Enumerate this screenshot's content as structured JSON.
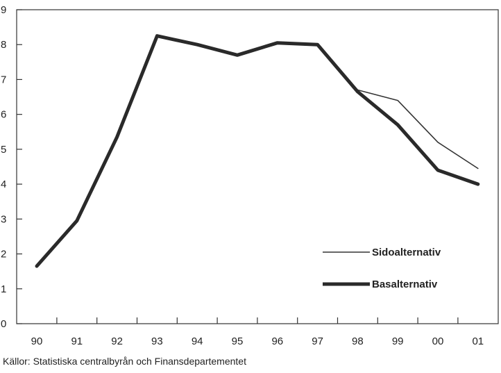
{
  "chart_data": {
    "type": "line",
    "categories": [
      "90",
      "91",
      "92",
      "93",
      "94",
      "95",
      "96",
      "97",
      "98",
      "99",
      "00",
      "01"
    ],
    "ylim": [
      0,
      9
    ],
    "yticks": [
      "0",
      "1",
      "2",
      "3",
      "4",
      "5",
      "6",
      "7",
      "8",
      "9"
    ],
    "grid": false,
    "legend_position": "bottom-right",
    "series": [
      {
        "name": "Sidoalternativ",
        "style": "thin",
        "color": "#333333",
        "values": [
          null,
          null,
          null,
          null,
          null,
          null,
          null,
          null,
          6.7,
          6.4,
          5.2,
          4.45
        ]
      },
      {
        "name": "Basalternativ",
        "style": "thick",
        "color": "#2a2a2a",
        "values": [
          1.65,
          2.95,
          5.35,
          8.25,
          8.0,
          7.7,
          8.05,
          8.0,
          6.65,
          5.7,
          4.4,
          4.0
        ]
      }
    ]
  },
  "source_note": "Källor: Statistiska centralbyrån och Finansdepartementet"
}
